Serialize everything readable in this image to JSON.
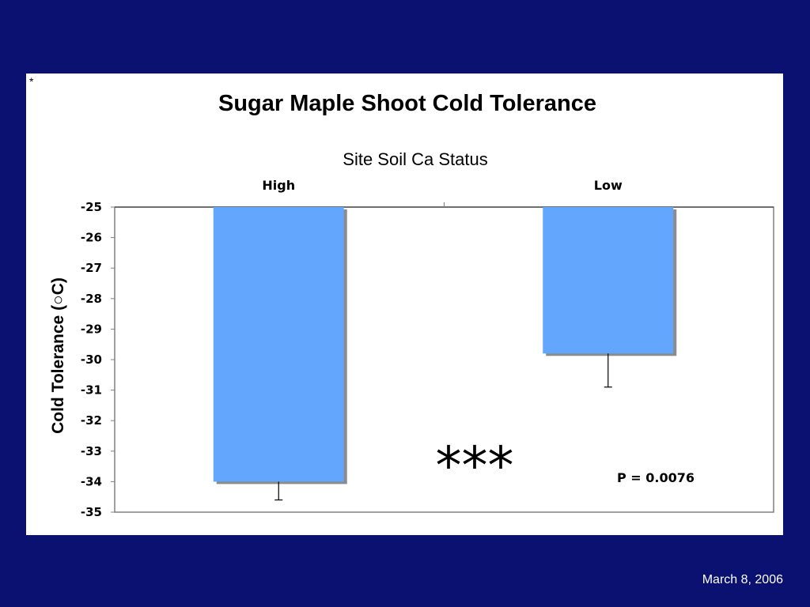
{
  "slide": {
    "corner_mark": "*",
    "footer_date": "March 8, 2006",
    "background_color": "#0a1170"
  },
  "chart_data": {
    "type": "bar",
    "title": "Sugar Maple Shoot Cold Tolerance",
    "subtitle": "Site Soil Ca Status",
    "categories": [
      "High",
      "Low"
    ],
    "values": [
      -34.0,
      -29.8
    ],
    "error_bars": [
      0.6,
      1.1
    ],
    "ylabel": "Cold Tolerance (○C)",
    "ylim": [
      -35,
      -25
    ],
    "yticks": [
      -25,
      -26,
      -27,
      -28,
      -29,
      -30,
      -31,
      -32,
      -33,
      -34,
      -35
    ],
    "x_axis_position": "top",
    "bar_color": "#63a6fd",
    "grid": false,
    "significance": "***",
    "p_value_label": "P =  0.0076"
  }
}
